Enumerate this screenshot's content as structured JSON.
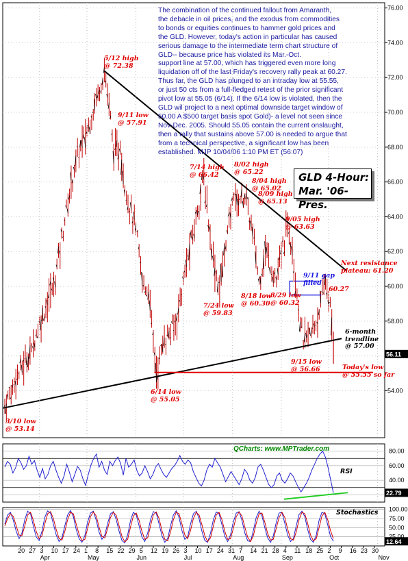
{
  "commentary_lines": [
    "The combination of the continued fallout from Amaranth,",
    "the debacle in oil prices, and the exodus from commodities",
    "to bonds or equities continues to hammer gold prices and",
    "the GLD. However, today's action in particular has caused",
    "serious damage to the intermediate term chart structure of",
    "GLD-- because price has violated its Mar.-Oct.",
    "support line at 57.00, which has triggered even more long",
    "liquidation off of the last Friday's recovery rally peak at 60.27.",
    "Thus far, the GLD has plunged to an intraday low at 55.55,",
    "or just 50 cts from a full-fledged retest of the prior significant",
    "pivot low at 55.05 (6/14). If the 6/14 low is violated,  then the",
    "GLD wil project to a next optimal downside target window of",
    "50.00 A $500 target basis spot Gold)- a level not seen since",
    "Nov-Dec. 2005. Should 55.05 contain the current onslaught,",
    "then a rally that sustains above 57.00 is needed to argue that",
    "from a technical perspective, a significant low has been",
    "established. MJP 10/04/06  1:10 PM ET   (56:07)"
  ],
  "title_line1": "GLD 4-Hour:",
  "title_line2": "Mar. '06-Pres.",
  "credit": "QCharts: www.MPTrader.com",
  "rsi_label": "RSI",
  "stoch_label": "Stochastics",
  "annotations": {
    "a_312": [
      "3/10 low",
      "@ 53.14"
    ],
    "a_512": [
      "5/12 high",
      "@ 72.38"
    ],
    "a_511": [
      "9/11 low",
      "@ 57.91"
    ],
    "a_614": [
      "6/14 low",
      "@ 55.05"
    ],
    "a_714": [
      "7/14 high",
      "@ 66.42"
    ],
    "a_724": [
      "7/24 low",
      "@ 59.83"
    ],
    "a_802": [
      "8/02 high",
      "@ 65.22"
    ],
    "a_804": [
      "8/04 high",
      "@ 65.02"
    ],
    "a_809": [
      "8/09 high",
      "@ 65.13"
    ],
    "a_818": [
      "8/18 low",
      "@ 60.30"
    ],
    "a_829": [
      "8/29 low",
      "@ 60.32"
    ],
    "a_905": [
      "9/05 high",
      "@ 63.63"
    ],
    "a_915": [
      "9/15 low",
      "@ 56.66"
    ],
    "a_gap": [
      "9/11 gap",
      "filled"
    ],
    "a_6027": "60.27",
    "a_resist": [
      "Next resistance",
      "plateau: 61.20"
    ],
    "a_trend": [
      "6-month",
      "trendline",
      "@ 57.00"
    ],
    "a_today": [
      "Today's low",
      "@ 55.55 so far"
    ]
  },
  "chart_data": [
    {
      "type": "line",
      "title": "GLD 4-Hour: Mar. '06-Pres.",
      "ylim": [
        51.3,
        76.3
      ],
      "yticks": [
        "54.00",
        "56.00",
        "58.00",
        "60.00",
        "62.00",
        "64.00",
        "66.00",
        "68.00",
        "70.00",
        "72.00",
        "74.00",
        "76.00"
      ],
      "last_value_label": "56.11",
      "x_ticks": [
        "20",
        "27",
        "3",
        "10",
        "17",
        "24",
        "1",
        "8",
        "15",
        "22",
        "29",
        "5",
        "12",
        "19",
        "26",
        "3",
        "10",
        "17",
        "24",
        "31",
        "7",
        "14",
        "21",
        "28",
        "4",
        "11",
        "18",
        "25",
        "2",
        "9",
        "16",
        "23",
        "30"
      ],
      "months": [
        "Apr",
        "May",
        "Jun",
        "Jul",
        "Aug",
        "Sep",
        "Oct",
        "Nov"
      ],
      "x_dates": [
        "Mar 10",
        "Mar 17",
        "Mar 27",
        "Apr 3",
        "Apr 10",
        "Apr 17",
        "Apr 24",
        "May 1",
        "May 8",
        "May 12",
        "May 15",
        "May 18",
        "May 22",
        "May 26",
        "Jun 1",
        "Jun 5",
        "Jun 9",
        "Jun 14",
        "Jun 19",
        "Jun 26",
        "Jul 3",
        "Jul 10",
        "Jul 14",
        "Jul 19",
        "Jul 24",
        "Jul 28",
        "Aug 2",
        "Aug 4",
        "Aug 9",
        "Aug 14",
        "Aug 18",
        "Aug 22",
        "Aug 29",
        "Sep 5",
        "Sep 8",
        "Sep 11",
        "Sep 15",
        "Sep 20",
        "Sep 25",
        "Sep 29",
        "Oct 2",
        "Oct 3",
        "Oct 4"
      ],
      "values": [
        53.14,
        54.6,
        56.5,
        58.4,
        60.1,
        63.8,
        67.3,
        68.9,
        71.2,
        72.38,
        70.6,
        67.5,
        67.9,
        65.2,
        63.3,
        60.4,
        59.6,
        55.05,
        56.9,
        57.8,
        61.2,
        64.3,
        66.42,
        62.0,
        59.83,
        62.4,
        65.22,
        65.02,
        65.13,
        63.1,
        60.3,
        62.1,
        60.32,
        63.63,
        62.2,
        59.5,
        56.66,
        57.3,
        58.4,
        60.27,
        59.1,
        57.6,
        56.11
      ],
      "levels": {
        "trendline_start": 53.14,
        "trendline_end": 57.0,
        "support": 55.05,
        "resistance": 61.2,
        "today_low": 55.55
      }
    },
    {
      "type": "line",
      "title": "RSI",
      "ylim": [
        10,
        90
      ],
      "yticks": [
        "20.00",
        "40.00",
        "60.00",
        "80.00"
      ],
      "last_value_label": "22.79",
      "values": [
        58,
        66,
        62,
        50,
        57,
        70,
        64,
        55,
        60,
        73,
        62,
        67,
        54,
        44,
        56,
        42,
        48,
        60,
        66,
        54,
        44,
        36,
        46,
        62,
        51,
        38,
        48,
        59,
        54,
        42,
        33,
        48,
        61,
        70,
        76,
        58,
        66,
        54,
        48,
        66,
        60,
        67,
        72,
        63,
        47,
        70,
        58,
        62,
        68,
        54,
        46,
        50,
        60,
        52,
        42,
        48,
        58,
        63,
        55,
        48,
        44,
        50,
        56,
        60,
        66,
        74,
        66,
        62,
        68,
        64,
        52,
        44,
        36,
        32,
        40,
        54,
        62,
        58,
        70,
        64,
        58,
        48,
        38,
        45,
        52,
        46,
        40,
        34,
        42,
        55,
        50,
        40,
        36,
        44,
        58,
        62,
        54,
        44,
        34,
        30,
        34,
        46,
        50,
        40,
        36,
        42,
        50,
        46,
        38,
        30,
        24,
        30,
        36,
        44,
        54,
        62,
        70,
        76,
        80,
        72,
        58,
        40,
        22.79
      ]
    },
    {
      "type": "line",
      "title": "Stochastics",
      "ylim": [
        0,
        105
      ],
      "yticks": [
        "25.00",
        "50.00",
        "75.00",
        "100.00"
      ],
      "last_value_label": "12.64",
      "series": [
        {
          "values": [
            60,
            85,
            92,
            70,
            40,
            20,
            35,
            72,
            95,
            88,
            55,
            25,
            15,
            40,
            78,
            96,
            90,
            60,
            30,
            12,
            22,
            55,
            85,
            97,
            80,
            45,
            20,
            10,
            28,
            65,
            90,
            95,
            70,
            38,
            18,
            30,
            62,
            88,
            94,
            72,
            40,
            15,
            8,
            30,
            70,
            92,
            85,
            55,
            25,
            12,
            35,
            72,
            94,
            90,
            60,
            28,
            10,
            20,
            55,
            85,
            96,
            78,
            42,
            18,
            25,
            60,
            88,
            95,
            75,
            40,
            15,
            10,
            35,
            72,
            93,
            88,
            58,
            26,
            12,
            30,
            66,
            90,
            94,
            70,
            36,
            14,
            12,
            42,
            78,
            95,
            82,
            50,
            22,
            10,
            28,
            64,
            90,
            92,
            62,
            30,
            12,
            20,
            55,
            86,
            95,
            80,
            45,
            18,
            10,
            30,
            70,
            92,
            88,
            58,
            26,
            12.64
          ]
        },
        {
          "values": [
            55,
            75,
            88,
            80,
            55,
            30,
            28,
            55,
            85,
            92,
            70,
            40,
            20,
            28,
            60,
            88,
            94,
            75,
            45,
            20,
            16,
            40,
            72,
            92,
            88,
            60,
            32,
            14,
            18,
            48,
            80,
            93,
            82,
            52,
            26,
            22,
            48,
            78,
            92,
            84,
            55,
            26,
            11,
            18,
            52,
            82,
            90,
            70,
            40,
            18,
            22,
            55,
            85,
            93,
            75,
            42,
            18,
            14,
            38,
            72,
            92,
            88,
            60,
            30,
            20,
            42,
            75,
            92,
            85,
            58,
            28,
            12,
            22,
            55,
            85,
            92,
            72,
            40,
            18,
            20,
            48,
            80,
            93,
            82,
            52,
            24,
            12,
            28,
            62,
            88,
            90,
            65,
            34,
            16,
            18,
            48,
            78,
            92,
            78,
            46,
            20,
            16,
            38,
            72,
            92,
            88,
            62,
            30,
            14,
            20,
            50,
            82,
            92,
            72,
            42,
            20
          ]
        }
      ]
    }
  ]
}
